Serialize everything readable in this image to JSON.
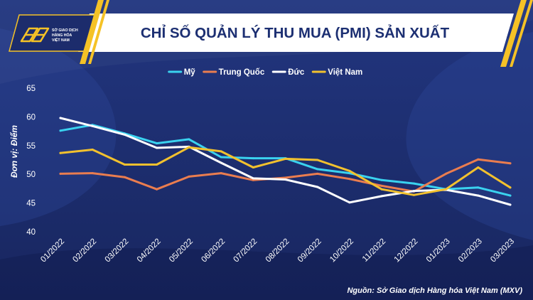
{
  "theme": {
    "background": "#1c2c6c",
    "banner": "#ffffff",
    "title_color": "#1c2f72",
    "accent": "#f5c226"
  },
  "logo": {
    "icon": "mxv-logo-icon",
    "lines": [
      "SỞ GIAO DỊCH",
      "HÀNG HÓA",
      "VIỆT NAM"
    ]
  },
  "footer": {
    "source": "Nguồn: Sở Giao dịch Hàng hóa Việt Nam (MXV)"
  },
  "chart_data": {
    "type": "line",
    "title": "CHỈ SỐ QUẢN LÝ THU MUA (PMI) SẢN XUẤT",
    "ylabel": "Đơn vị: Điểm",
    "categories": [
      "01/2022",
      "02/2022",
      "03/2022",
      "04/2022",
      "05/2022",
      "06/2022",
      "07/2022",
      "08/2022",
      "09/2022",
      "10/2022",
      "11/2022",
      "12/2022",
      "01/2023",
      "02/2023",
      "03/2023"
    ],
    "ylim": [
      40,
      65
    ],
    "yticks": [
      40,
      45,
      50,
      55,
      60,
      65
    ],
    "grid": false,
    "legend": "top",
    "series": [
      {
        "name": "Mỹ",
        "color": "#3ad2ef",
        "values": [
          57.6,
          58.6,
          57.1,
          55.4,
          56.1,
          53.0,
          52.8,
          52.8,
          50.9,
          50.2,
          49.0,
          48.4,
          47.4,
          47.7,
          46.3
        ]
      },
      {
        "name": "Trung Quốc",
        "color": "#ea7d4f",
        "values": [
          50.1,
          50.2,
          49.5,
          47.4,
          49.6,
          50.2,
          49.0,
          49.4,
          50.1,
          49.2,
          48.0,
          47.0,
          50.1,
          52.6,
          51.9
        ]
      },
      {
        "name": "Đức",
        "color": "#ffffff",
        "values": [
          59.8,
          58.4,
          56.9,
          54.6,
          54.8,
          52.0,
          49.3,
          49.1,
          47.8,
          45.1,
          46.2,
          47.1,
          47.3,
          46.3,
          44.7
        ]
      },
      {
        "name": "Việt Nam",
        "color": "#f2c12e",
        "values": [
          53.7,
          54.3,
          51.7,
          51.7,
          54.7,
          54.0,
          51.2,
          52.7,
          52.5,
          50.6,
          47.4,
          46.4,
          47.4,
          51.2,
          47.7
        ]
      }
    ]
  }
}
